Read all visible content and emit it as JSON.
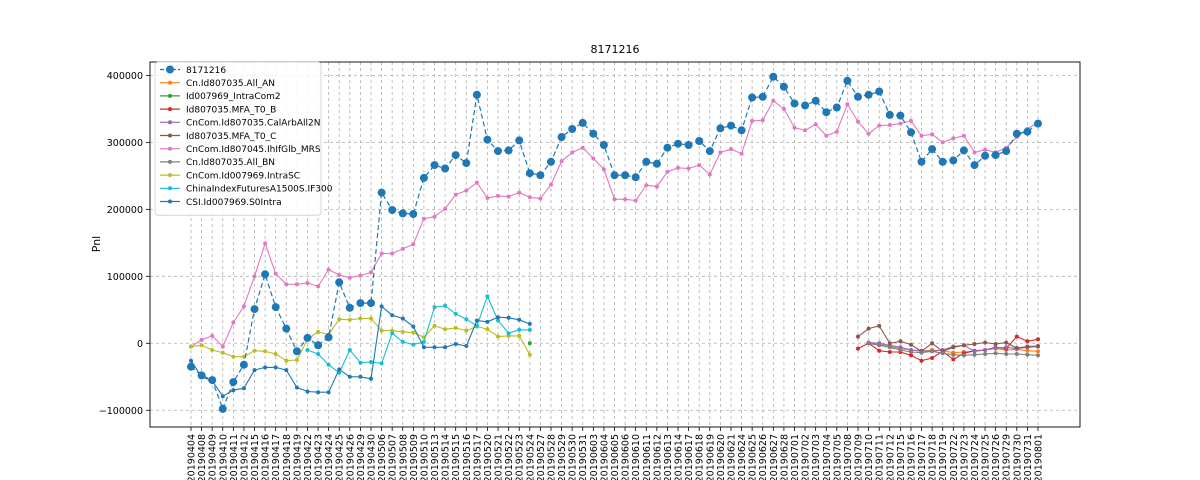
{
  "chart_data": {
    "type": "line",
    "title": "8171216",
    "xlabel": "",
    "ylabel": "Pnl",
    "ylim": [
      -125000,
      420000
    ],
    "yticks": [
      -100000,
      0,
      100000,
      200000,
      300000,
      400000
    ],
    "grid": true,
    "legend_position": "upper-left",
    "categories": [
      "20190404",
      "20190408",
      "20190409",
      "20190410",
      "20190411",
      "20190412",
      "20190415",
      "20190416",
      "20190417",
      "20190418",
      "20190419",
      "20190422",
      "20190423",
      "20190424",
      "20190425",
      "20190426",
      "20190429",
      "20190430",
      "20190506",
      "20190507",
      "20190508",
      "20190509",
      "20190510",
      "20190513",
      "20190514",
      "20190515",
      "20190516",
      "20190517",
      "20190520",
      "20190521",
      "20190522",
      "20190523",
      "20190524",
      "20190527",
      "20190528",
      "20190529",
      "20190530",
      "20190531",
      "20190603",
      "20190604",
      "20190605",
      "20190606",
      "20190610",
      "20190611",
      "20190612",
      "20190613",
      "20190614",
      "20190617",
      "20190618",
      "20190619",
      "20190620",
      "20190621",
      "20190624",
      "20190625",
      "20190626",
      "20190627",
      "20190628",
      "20190701",
      "20190702",
      "20190703",
      "20190704",
      "20190705",
      "20190708",
      "20190709",
      "20190710",
      "20190711",
      "20190712",
      "20190715",
      "20190716",
      "20190717",
      "20190718",
      "20190719",
      "20190722",
      "20190723",
      "20190724",
      "20190725",
      "20190726",
      "20190729",
      "20190730",
      "20190731",
      "20190801"
    ],
    "series": [
      {
        "name": "8171216",
        "color": "#1f77b4",
        "style": "dashed-large-marker",
        "values": [
          -35000,
          -48000,
          -55000,
          -98000,
          -58000,
          -32000,
          51000,
          103000,
          54000,
          22000,
          -12000,
          8000,
          -3000,
          9000,
          91000,
          53000,
          60000,
          60000,
          225000,
          199000,
          194000,
          193000,
          247000,
          266000,
          261000,
          281000,
          269000,
          371000,
          304000,
          287000,
          288000,
          303000,
          254000,
          251000,
          271000,
          308000,
          320000,
          329000,
          313000,
          296000,
          251000,
          251000,
          248000,
          271000,
          268000,
          292000,
          298000,
          296000,
          302000,
          287000,
          321000,
          325000,
          318000,
          367000,
          368000,
          398000,
          383000,
          358000,
          355000,
          362000,
          345000,
          352000,
          392000,
          368000,
          371000,
          376000,
          341000,
          340000,
          315000,
          271000,
          290000,
          271000,
          273000,
          288000,
          266000,
          280000,
          281000,
          287000,
          313000,
          316000,
          328000
        ]
      },
      {
        "name": "Cn.Id807035.All_AN",
        "color": "#ff7f0e",
        "values": [
          null,
          null,
          null,
          null,
          null,
          null,
          null,
          null,
          null,
          null,
          null,
          null,
          null,
          null,
          null,
          null,
          null,
          null,
          null,
          null,
          null,
          null,
          null,
          null,
          null,
          null,
          null,
          null,
          null,
          null,
          null,
          null,
          null,
          null,
          null,
          null,
          null,
          null,
          null,
          null,
          null,
          null,
          null,
          null,
          null,
          null,
          null,
          null,
          null,
          null,
          null,
          null,
          null,
          null,
          null,
          null,
          null,
          null,
          null,
          null,
          null,
          null,
          null,
          null,
          0,
          -2000,
          -5000,
          -8000,
          -10000,
          -12000,
          -10000,
          -11000,
          -14000,
          -13000,
          -12000,
          -10000,
          -8000,
          -10000,
          -9000,
          -11000,
          -12000
        ]
      },
      {
        "name": "Id007969_IntraCom2",
        "color": "#2ca02c",
        "values": [
          null,
          null,
          null,
          null,
          null,
          null,
          null,
          null,
          null,
          null,
          null,
          null,
          null,
          null,
          null,
          null,
          null,
          null,
          null,
          null,
          null,
          null,
          null,
          null,
          null,
          null,
          null,
          null,
          null,
          null,
          null,
          null,
          0,
          null,
          null,
          null,
          null,
          null,
          null,
          null,
          null,
          null,
          null,
          null,
          null,
          null,
          null,
          null,
          null,
          null,
          null,
          null,
          null,
          null,
          null,
          null,
          null,
          null,
          null,
          null,
          null,
          null,
          null,
          null,
          null,
          null,
          null,
          null,
          null,
          null,
          null,
          null,
          null,
          null,
          null,
          null,
          null,
          null,
          null,
          null,
          null
        ]
      },
      {
        "name": "Id807035.MFA_T0_B",
        "color": "#d62728",
        "values": [
          null,
          null,
          null,
          null,
          null,
          null,
          null,
          null,
          null,
          null,
          null,
          null,
          null,
          null,
          null,
          null,
          null,
          null,
          null,
          null,
          null,
          null,
          null,
          null,
          null,
          null,
          null,
          null,
          null,
          null,
          null,
          null,
          null,
          null,
          null,
          null,
          null,
          null,
          null,
          null,
          null,
          null,
          null,
          null,
          null,
          null,
          null,
          null,
          null,
          null,
          null,
          null,
          null,
          null,
          null,
          null,
          null,
          null,
          null,
          null,
          null,
          null,
          null,
          -8000,
          0,
          -11000,
          -13000,
          -13000,
          -18000,
          -26000,
          -22000,
          -12000,
          -24000,
          -15000,
          -11000,
          -10000,
          -6000,
          -8000,
          10000,
          3000,
          6000
        ]
      },
      {
        "name": "CnCom.Id807035.CalArbAll2N",
        "color": "#9467bd",
        "values": [
          null,
          null,
          null,
          null,
          null,
          null,
          null,
          null,
          null,
          null,
          null,
          null,
          null,
          null,
          null,
          null,
          null,
          null,
          null,
          null,
          null,
          null,
          null,
          null,
          null,
          null,
          null,
          null,
          null,
          null,
          null,
          null,
          null,
          null,
          null,
          null,
          null,
          null,
          null,
          null,
          null,
          null,
          null,
          null,
          null,
          null,
          null,
          null,
          null,
          null,
          null,
          null,
          null,
          null,
          null,
          null,
          null,
          null,
          null,
          null,
          null,
          null,
          null,
          null,
          1000,
          0,
          -3000,
          -6000,
          -10000,
          -11000,
          -12000,
          -10000,
          -5000,
          -3000,
          -12000,
          -10000,
          -7000,
          -6000,
          -8000,
          -6000,
          -5000
        ]
      },
      {
        "name": "Id807035.MFA_T0_C",
        "color": "#8c564b",
        "values": [
          null,
          null,
          null,
          null,
          null,
          null,
          null,
          null,
          null,
          null,
          null,
          null,
          null,
          null,
          null,
          null,
          null,
          null,
          null,
          null,
          null,
          null,
          null,
          null,
          null,
          null,
          null,
          null,
          null,
          null,
          null,
          null,
          null,
          null,
          null,
          null,
          null,
          null,
          null,
          null,
          null,
          null,
          null,
          null,
          null,
          null,
          null,
          null,
          null,
          null,
          null,
          null,
          null,
          null,
          null,
          null,
          null,
          null,
          null,
          null,
          null,
          null,
          null,
          10000,
          22000,
          26000,
          0,
          3000,
          -2000,
          -12000,
          0,
          -12000,
          -6000,
          -3000,
          -1000,
          1000,
          -1000,
          1000,
          -7000,
          -5000,
          -4000
        ]
      },
      {
        "name": "CnCom.Id807045.IhIfGlb_MRS",
        "color": "#e377c2",
        "values": [
          -5000,
          5000,
          11000,
          -5000,
          31000,
          55000,
          100000,
          149000,
          104000,
          88000,
          88000,
          90000,
          85000,
          110000,
          102000,
          98000,
          101000,
          106000,
          134000,
          134000,
          141000,
          148000,
          186000,
          189000,
          201000,
          222000,
          228000,
          240000,
          217000,
          220000,
          219000,
          225000,
          218000,
          216000,
          237000,
          272000,
          285000,
          292000,
          276000,
          260000,
          215000,
          215000,
          213000,
          236000,
          234000,
          256000,
          262000,
          261000,
          266000,
          252000,
          285000,
          290000,
          283000,
          332000,
          333000,
          362000,
          350000,
          322000,
          318000,
          327000,
          310000,
          316000,
          357000,
          331000,
          313000,
          325000,
          326000,
          328000,
          332000,
          310000,
          312000,
          300000,
          306000,
          310000,
          285000,
          289000,
          285000,
          292000,
          308000,
          320000,
          330000
        ]
      },
      {
        "name": "Cn.Id807035.All_BN",
        "color": "#7f7f7f",
        "values": [
          null,
          null,
          null,
          null,
          null,
          null,
          null,
          null,
          null,
          null,
          null,
          null,
          null,
          null,
          null,
          null,
          null,
          null,
          null,
          null,
          null,
          null,
          null,
          null,
          null,
          null,
          null,
          null,
          null,
          null,
          null,
          null,
          null,
          null,
          null,
          null,
          null,
          null,
          null,
          null,
          null,
          null,
          null,
          null,
          null,
          null,
          null,
          null,
          null,
          null,
          null,
          null,
          null,
          null,
          null,
          null,
          null,
          null,
          null,
          null,
          null,
          null,
          null,
          null,
          0,
          -3000,
          -6000,
          -10000,
          -13000,
          -14000,
          -12000,
          -15000,
          -17000,
          -18000,
          -17000,
          -16000,
          -15000,
          -16000,
          -16000,
          -17000,
          -18000
        ]
      },
      {
        "name": "CnCom.Id007969.IntraSC",
        "color": "#bcbd22",
        "values": [
          -5000,
          -3000,
          -10000,
          -14000,
          -20000,
          -20000,
          -11000,
          -12000,
          -16000,
          -26000,
          -25000,
          6000,
          17000,
          13000,
          36000,
          35000,
          37000,
          37000,
          19000,
          19000,
          17000,
          16000,
          9000,
          26000,
          21000,
          23000,
          19000,
          25000,
          21000,
          10000,
          11000,
          11000,
          -17000,
          null,
          null,
          null,
          null,
          null,
          null,
          null,
          null,
          null,
          null,
          null,
          null,
          null,
          null,
          null,
          null,
          null,
          null,
          null,
          null,
          null,
          null,
          null,
          null,
          null,
          null,
          null,
          null,
          null,
          null,
          null,
          null,
          null,
          null,
          null,
          null,
          null,
          null,
          null,
          null,
          null,
          null,
          null,
          null,
          null,
          null,
          null,
          null
        ]
      },
      {
        "name": "ChinaIndexFuturesA1500S.IF300",
        "color": "#17becf",
        "values": [
          null,
          null,
          null,
          null,
          null,
          null,
          null,
          null,
          null,
          null,
          null,
          -10000,
          -16000,
          -32000,
          -44000,
          -10000,
          -29000,
          -28000,
          -30000,
          15000,
          2000,
          -2000,
          2000,
          54000,
          56000,
          44000,
          36000,
          26000,
          70000,
          34000,
          15000,
          20000,
          20000,
          null,
          null,
          null,
          null,
          null,
          null,
          null,
          null,
          null,
          null,
          null,
          null,
          null,
          null,
          null,
          null,
          null,
          null,
          null,
          null,
          null,
          null,
          null,
          null,
          null,
          null,
          null,
          null,
          null,
          null,
          null,
          null,
          null,
          null,
          null,
          null,
          null,
          null,
          null,
          null,
          null,
          null,
          null,
          null,
          null,
          null,
          null,
          null
        ]
      },
      {
        "name": "CSI.Id007969.S0Intra",
        "color": "#1f77b4",
        "values": [
          -26000,
          -50000,
          -56000,
          -79000,
          -70000,
          -67000,
          -40000,
          -36000,
          -36000,
          -40000,
          -66000,
          -72000,
          -73000,
          -73000,
          -39000,
          -50000,
          -50000,
          -53000,
          55000,
          42000,
          37000,
          25000,
          -6000,
          -6000,
          -6000,
          -1000,
          -4000,
          34000,
          32000,
          39000,
          38000,
          35000,
          29000,
          null,
          null,
          null,
          null,
          null,
          null,
          null,
          null,
          null,
          null,
          null,
          null,
          null,
          null,
          null,
          null,
          null,
          null,
          null,
          null,
          null,
          null,
          null,
          null,
          null,
          null,
          null,
          null,
          null,
          null,
          null,
          null,
          null,
          null,
          null,
          null,
          null,
          null,
          null,
          null,
          null,
          null,
          null,
          null,
          null,
          null,
          null,
          null
        ]
      }
    ]
  }
}
